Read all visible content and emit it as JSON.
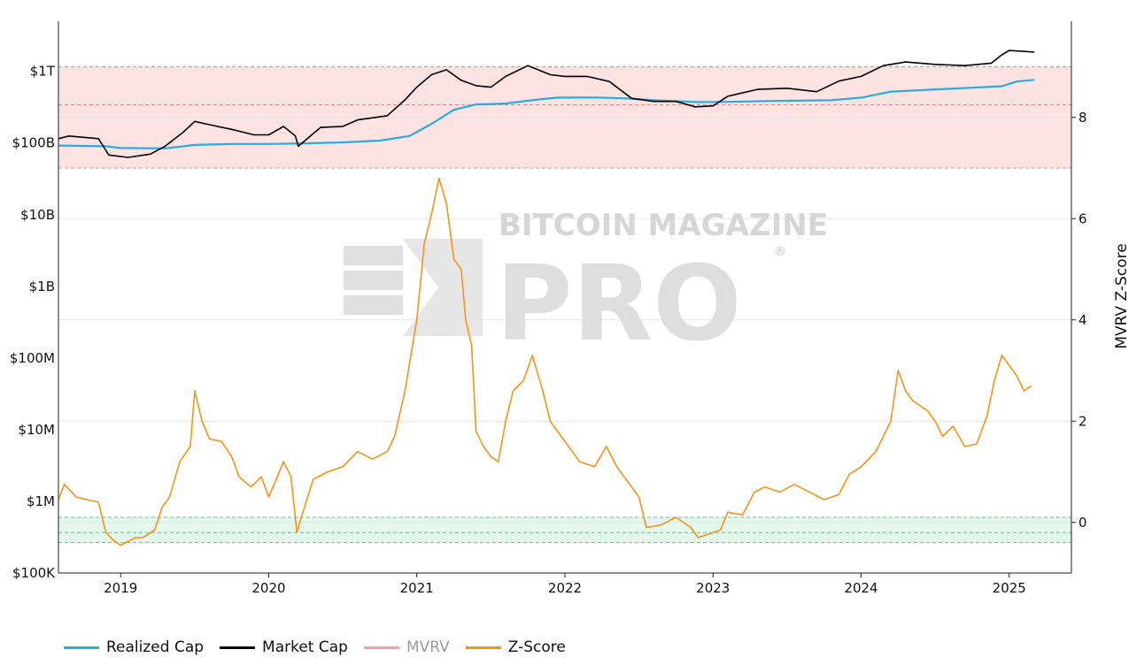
{
  "chart_data": {
    "type": "line",
    "title": "",
    "watermark": {
      "line1": "BITCOIN MAGAZINE",
      "line2": "PRO",
      "mark": "®"
    },
    "x_ticks": [
      "2019",
      "2020",
      "2021",
      "2022",
      "2023",
      "2024",
      "2025"
    ],
    "xlim": [
      2018.58,
      2025.42
    ],
    "left_axis": {
      "scale": "log",
      "range": [
        100000,
        5000000000000
      ],
      "ticks": [
        {
          "label": "$1T",
          "value": 1000000000000
        },
        {
          "label": "$100B",
          "value": 100000000000
        },
        {
          "label": "$10B",
          "value": 10000000000
        },
        {
          "label": "$1B",
          "value": 1000000000
        },
        {
          "label": "$100M",
          "value": 100000000
        },
        {
          "label": "$10M",
          "value": 10000000
        },
        {
          "label": "$1M",
          "value": 1000000
        },
        {
          "label": "$100K",
          "value": 100000
        }
      ]
    },
    "right_axis": {
      "label": "MVRV Z-Score",
      "range": [
        -1.0,
        9.9
      ],
      "ticks": [
        {
          "label": "0",
          "value": 0
        },
        {
          "label": "2",
          "value": 2
        },
        {
          "label": "4",
          "value": 4
        },
        {
          "label": "6",
          "value": 6
        },
        {
          "label": "8",
          "value": 8
        }
      ]
    },
    "bands": [
      {
        "name": "overvalued-zone",
        "axis": "right",
        "from": 7.0,
        "to": 9.0,
        "color": "#fde2e2",
        "border": "#f08c8c",
        "mid": 8.25
      },
      {
        "name": "undervalued-zone",
        "axis": "right",
        "from": -0.4,
        "to": 0.1,
        "color": "#e3f7ec",
        "border": "#6cc48c",
        "mid": -0.2
      }
    ],
    "series": [
      {
        "name": "Realized Cap",
        "axis": "left",
        "color": "#29abe2",
        "points": [
          [
            2018.58,
            92000000000
          ],
          [
            2018.9,
            90000000000
          ],
          [
            2019.0,
            85000000000
          ],
          [
            2019.3,
            84000000000
          ],
          [
            2019.5,
            94000000000
          ],
          [
            2019.75,
            97000000000
          ],
          [
            2020.0,
            97000000000
          ],
          [
            2020.25,
            99000000000
          ],
          [
            2020.5,
            102000000000
          ],
          [
            2020.75,
            108000000000
          ],
          [
            2020.95,
            125000000000
          ],
          [
            2021.1,
            185000000000
          ],
          [
            2021.25,
            290000000000
          ],
          [
            2021.4,
            345000000000
          ],
          [
            2021.6,
            355000000000
          ],
          [
            2021.8,
            400000000000
          ],
          [
            2021.95,
            430000000000
          ],
          [
            2022.2,
            432000000000
          ],
          [
            2022.4,
            420000000000
          ],
          [
            2022.6,
            395000000000
          ],
          [
            2022.9,
            372000000000
          ],
          [
            2023.1,
            375000000000
          ],
          [
            2023.4,
            385000000000
          ],
          [
            2023.8,
            395000000000
          ],
          [
            2024.0,
            430000000000
          ],
          [
            2024.2,
            520000000000
          ],
          [
            2024.5,
            560000000000
          ],
          [
            2024.75,
            590000000000
          ],
          [
            2024.95,
            620000000000
          ],
          [
            2025.05,
            720000000000
          ],
          [
            2025.17,
            760000000000
          ]
        ]
      },
      {
        "name": "Market Cap",
        "axis": "left",
        "color": "#000000",
        "points": [
          [
            2018.58,
            115000000000
          ],
          [
            2018.65,
            125000000000
          ],
          [
            2018.85,
            115000000000
          ],
          [
            2018.92,
            68000000000
          ],
          [
            2019.05,
            63000000000
          ],
          [
            2019.2,
            70000000000
          ],
          [
            2019.3,
            90000000000
          ],
          [
            2019.42,
            140000000000
          ],
          [
            2019.5,
            200000000000
          ],
          [
            2019.6,
            180000000000
          ],
          [
            2019.75,
            155000000000
          ],
          [
            2019.9,
            130000000000
          ],
          [
            2020.0,
            130000000000
          ],
          [
            2020.1,
            170000000000
          ],
          [
            2020.18,
            125000000000
          ],
          [
            2020.2,
            90000000000
          ],
          [
            2020.35,
            165000000000
          ],
          [
            2020.5,
            170000000000
          ],
          [
            2020.6,
            210000000000
          ],
          [
            2020.8,
            240000000000
          ],
          [
            2020.92,
            400000000000
          ],
          [
            2021.0,
            600000000000
          ],
          [
            2021.1,
            900000000000
          ],
          [
            2021.2,
            1050000000000
          ],
          [
            2021.3,
            750000000000
          ],
          [
            2021.4,
            630000000000
          ],
          [
            2021.5,
            600000000000
          ],
          [
            2021.6,
            850000000000
          ],
          [
            2021.75,
            1200000000000
          ],
          [
            2021.9,
            900000000000
          ],
          [
            2022.0,
            850000000000
          ],
          [
            2022.15,
            850000000000
          ],
          [
            2022.3,
            720000000000
          ],
          [
            2022.45,
            420000000000
          ],
          [
            2022.6,
            380000000000
          ],
          [
            2022.75,
            380000000000
          ],
          [
            2022.88,
            320000000000
          ],
          [
            2023.0,
            330000000000
          ],
          [
            2023.1,
            450000000000
          ],
          [
            2023.3,
            560000000000
          ],
          [
            2023.5,
            580000000000
          ],
          [
            2023.7,
            520000000000
          ],
          [
            2023.85,
            730000000000
          ],
          [
            2024.0,
            850000000000
          ],
          [
            2024.15,
            1200000000000
          ],
          [
            2024.3,
            1350000000000
          ],
          [
            2024.5,
            1250000000000
          ],
          [
            2024.7,
            1200000000000
          ],
          [
            2024.88,
            1300000000000
          ],
          [
            2024.95,
            1700000000000
          ],
          [
            2025.0,
            1950000000000
          ],
          [
            2025.1,
            1900000000000
          ],
          [
            2025.17,
            1850000000000
          ]
        ]
      },
      {
        "name": "MVRV",
        "axis": "left",
        "color": "#f4a0a8",
        "hidden": true,
        "points": []
      },
      {
        "name": "Z-Score",
        "axis": "right",
        "color": "#f7931a",
        "points": [
          [
            2018.58,
            0.45
          ],
          [
            2018.62,
            0.75
          ],
          [
            2018.7,
            0.5
          ],
          [
            2018.85,
            0.4
          ],
          [
            2018.9,
            -0.2
          ],
          [
            2018.95,
            -0.35
          ],
          [
            2019.0,
            -0.45
          ],
          [
            2019.1,
            -0.3
          ],
          [
            2019.15,
            -0.3
          ],
          [
            2019.23,
            -0.15
          ],
          [
            2019.28,
            0.3
          ],
          [
            2019.33,
            0.5
          ],
          [
            2019.4,
            1.2
          ],
          [
            2019.47,
            1.5
          ],
          [
            2019.5,
            2.6
          ],
          [
            2019.55,
            2.0
          ],
          [
            2019.6,
            1.65
          ],
          [
            2019.68,
            1.6
          ],
          [
            2019.75,
            1.3
          ],
          [
            2019.8,
            0.9
          ],
          [
            2019.88,
            0.7
          ],
          [
            2019.95,
            0.9
          ],
          [
            2020.0,
            0.5
          ],
          [
            2020.05,
            0.85
          ],
          [
            2020.1,
            1.2
          ],
          [
            2020.15,
            0.9
          ],
          [
            2020.19,
            -0.2
          ],
          [
            2020.22,
            0.1
          ],
          [
            2020.3,
            0.85
          ],
          [
            2020.4,
            1.0
          ],
          [
            2020.5,
            1.1
          ],
          [
            2020.6,
            1.4
          ],
          [
            2020.7,
            1.25
          ],
          [
            2020.8,
            1.4
          ],
          [
            2020.85,
            1.7
          ],
          [
            2020.92,
            2.6
          ],
          [
            2021.0,
            4.0
          ],
          [
            2021.05,
            5.5
          ],
          [
            2021.1,
            6.1
          ],
          [
            2021.15,
            6.8
          ],
          [
            2021.2,
            6.3
          ],
          [
            2021.25,
            5.2
          ],
          [
            2021.3,
            5.0
          ],
          [
            2021.33,
            4.0
          ],
          [
            2021.37,
            3.5
          ],
          [
            2021.4,
            1.8
          ],
          [
            2021.45,
            1.5
          ],
          [
            2021.5,
            1.3
          ],
          [
            2021.55,
            1.2
          ],
          [
            2021.6,
            2.0
          ],
          [
            2021.65,
            2.6
          ],
          [
            2021.72,
            2.8
          ],
          [
            2021.78,
            3.3
          ],
          [
            2021.85,
            2.6
          ],
          [
            2021.9,
            2.0
          ],
          [
            2022.0,
            1.6
          ],
          [
            2022.1,
            1.2
          ],
          [
            2022.2,
            1.1
          ],
          [
            2022.28,
            1.5
          ],
          [
            2022.35,
            1.1
          ],
          [
            2022.45,
            0.7
          ],
          [
            2022.5,
            0.5
          ],
          [
            2022.55,
            -0.1
          ],
          [
            2022.65,
            -0.05
          ],
          [
            2022.75,
            0.1
          ],
          [
            2022.85,
            -0.1
          ],
          [
            2022.9,
            -0.3
          ],
          [
            2023.0,
            -0.2
          ],
          [
            2023.05,
            -0.15
          ],
          [
            2023.1,
            0.2
          ],
          [
            2023.2,
            0.15
          ],
          [
            2023.28,
            0.6
          ],
          [
            2023.35,
            0.7
          ],
          [
            2023.45,
            0.6
          ],
          [
            2023.55,
            0.75
          ],
          [
            2023.65,
            0.6
          ],
          [
            2023.75,
            0.45
          ],
          [
            2023.85,
            0.55
          ],
          [
            2023.92,
            0.95
          ],
          [
            2024.0,
            1.1
          ],
          [
            2024.1,
            1.4
          ],
          [
            2024.2,
            2.0
          ],
          [
            2024.25,
            3.0
          ],
          [
            2024.3,
            2.6
          ],
          [
            2024.35,
            2.4
          ],
          [
            2024.45,
            2.2
          ],
          [
            2024.5,
            2.0
          ],
          [
            2024.55,
            1.7
          ],
          [
            2024.62,
            1.9
          ],
          [
            2024.7,
            1.5
          ],
          [
            2024.78,
            1.55
          ],
          [
            2024.85,
            2.1
          ],
          [
            2024.9,
            2.8
          ],
          [
            2024.95,
            3.3
          ],
          [
            2025.0,
            3.1
          ],
          [
            2025.05,
            2.9
          ],
          [
            2025.1,
            2.6
          ],
          [
            2025.15,
            2.7
          ]
        ]
      }
    ]
  },
  "legend": [
    {
      "label": "Realized Cap",
      "color": "#29abe2",
      "active": true
    },
    {
      "label": "Market Cap",
      "color": "#000000",
      "active": true
    },
    {
      "label": "MVRV",
      "color": "#f4a0a8",
      "active": false
    },
    {
      "label": "Z-Score",
      "color": "#f7931a",
      "active": true
    }
  ]
}
